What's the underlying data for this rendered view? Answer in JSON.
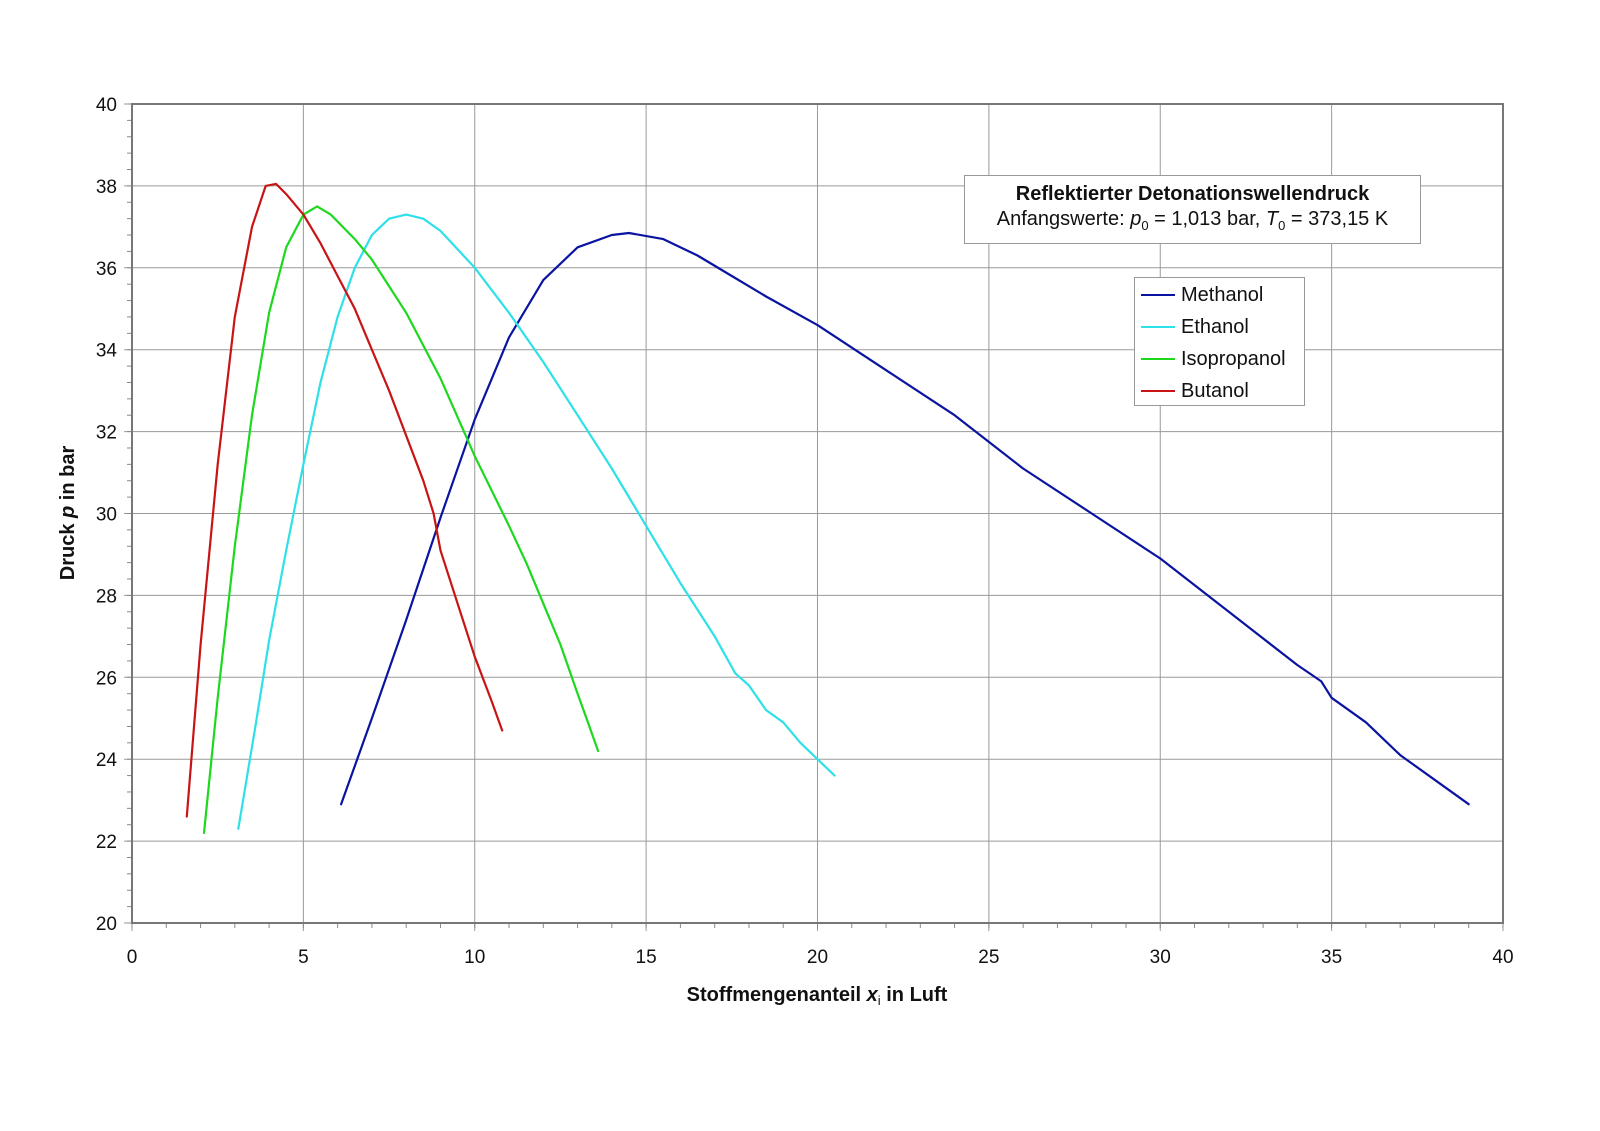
{
  "chart_data": {
    "type": "line",
    "title": "Reflektierter Detonationswellendruck",
    "subtitle": "Anfangswerte: p0 = 1,013 bar, T0 = 373,15 K",
    "subtitle_parts": {
      "prefix": "Anfangswerte: ",
      "p_symbol": "p",
      "p_sub": "0",
      "p_value": " = 1,013 bar, ",
      "t_symbol": "T",
      "t_sub": "0",
      "t_value": " = 373,15 K"
    },
    "xlabel": "Stoffmengenanteil x_i in Luft",
    "xlabel_parts": {
      "prefix": "Stoffmengenanteil ",
      "symbol": "x",
      "sub": "i",
      "suffix": " in Luft"
    },
    "ylabel": "Druck p in bar",
    "ylabel_parts": {
      "prefix": "Druck ",
      "symbol": "p",
      "suffix": " in bar"
    },
    "xlim": [
      0,
      40
    ],
    "ylim": [
      20,
      40
    ],
    "xticks": [
      0,
      5,
      10,
      15,
      20,
      25,
      30,
      35,
      40
    ],
    "yticks": [
      20,
      22,
      24,
      26,
      28,
      30,
      32,
      34,
      36,
      38,
      40
    ],
    "grid": true,
    "legend_position": "upper right (inside plot)",
    "series": [
      {
        "name": "Methanol",
        "color": "#0a14a0",
        "x": [
          6.1,
          7.0,
          8.0,
          9.0,
          10.0,
          11.0,
          12.0,
          13.0,
          14.0,
          14.5,
          15.5,
          16.5,
          17.5,
          18.5,
          20.0,
          22.0,
          24.0,
          26.0,
          28.0,
          30.0,
          32.0,
          34.0,
          34.7,
          35.0,
          36.0,
          37.0,
          38.0,
          39.0
        ],
        "y": [
          22.9,
          25.0,
          27.4,
          29.9,
          32.3,
          34.3,
          35.7,
          36.5,
          36.8,
          36.85,
          36.7,
          36.3,
          35.8,
          35.3,
          34.6,
          33.5,
          32.4,
          31.1,
          30.0,
          28.9,
          27.6,
          26.3,
          25.9,
          25.5,
          24.9,
          24.1,
          23.5,
          22.9
        ]
      },
      {
        "name": "Ethanol",
        "color": "#2ee0e8",
        "x": [
          3.1,
          3.6,
          4.0,
          4.5,
          5.0,
          5.5,
          6.0,
          6.5,
          7.0,
          7.5,
          8.0,
          8.5,
          9.0,
          10.0,
          11.0,
          12.0,
          13.0,
          14.0,
          15.0,
          16.0,
          17.0,
          17.6,
          18.0,
          18.5,
          19.0,
          19.5,
          20.0,
          20.5
        ],
        "y": [
          22.3,
          24.8,
          26.9,
          29.1,
          31.2,
          33.2,
          34.8,
          36.0,
          36.8,
          37.2,
          37.3,
          37.2,
          36.9,
          36.0,
          34.9,
          33.7,
          32.4,
          31.1,
          29.7,
          28.3,
          27.0,
          26.1,
          25.8,
          25.2,
          24.9,
          24.4,
          24.0,
          23.6
        ]
      },
      {
        "name": "Isopropanol",
        "color": "#1ed81e",
        "x": [
          2.1,
          2.5,
          3.0,
          3.5,
          4.0,
          4.5,
          5.0,
          5.4,
          5.8,
          6.5,
          7.0,
          8.0,
          9.0,
          10.0,
          11.0,
          11.5,
          12.0,
          12.5,
          13.0,
          13.3,
          13.6
        ],
        "y": [
          22.2,
          25.5,
          29.2,
          32.4,
          34.9,
          36.5,
          37.3,
          37.5,
          37.3,
          36.7,
          36.2,
          34.9,
          33.3,
          31.4,
          29.7,
          28.8,
          27.8,
          26.8,
          25.6,
          24.9,
          24.2
        ]
      },
      {
        "name": "Butanol",
        "color": "#c81414",
        "x": [
          1.6,
          2.0,
          2.5,
          3.0,
          3.5,
          3.9,
          4.2,
          4.5,
          5.0,
          5.5,
          6.0,
          6.5,
          7.0,
          7.5,
          8.0,
          8.5,
          8.8,
          9.0,
          9.5,
          10.0,
          10.5,
          10.8
        ],
        "y": [
          22.6,
          26.8,
          31.2,
          34.8,
          37.0,
          38.0,
          38.05,
          37.8,
          37.3,
          36.6,
          35.8,
          35.0,
          34.0,
          33.0,
          31.9,
          30.8,
          30.0,
          29.1,
          27.8,
          26.5,
          25.4,
          24.7
        ]
      }
    ]
  }
}
